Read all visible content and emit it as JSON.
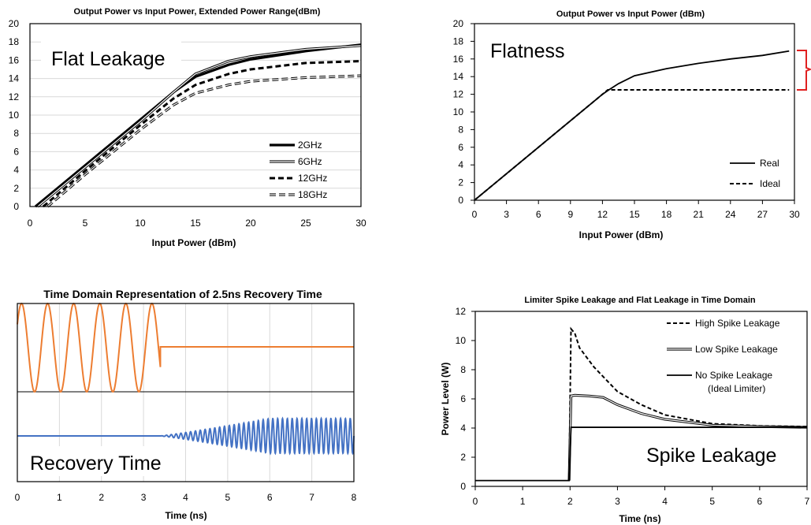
{
  "chart_data": [
    {
      "id": "c1",
      "type": "line",
      "title": "Output Power vs Input Power, Extended Power Range(dBm)",
      "xlabel": "Input Power (dBm)",
      "ylabel": "",
      "xlim": [
        0,
        30
      ],
      "ylim": [
        0,
        20
      ],
      "xticks": [
        0,
        5,
        10,
        15,
        20,
        25,
        30
      ],
      "yticks": [
        0,
        2,
        4,
        6,
        8,
        10,
        12,
        14,
        16,
        18,
        20
      ],
      "grid": "horizontal",
      "legend": "bottom-right",
      "annotation": "Flat Leakage",
      "series": [
        {
          "name": "2GHz",
          "style": "thick-solid",
          "points": [
            [
              0.5,
              0
            ],
            [
              5,
              4.5
            ],
            [
              10,
              9.5
            ],
            [
              13,
              12.5
            ],
            [
              15,
              14.2
            ],
            [
              18,
              15.5
            ],
            [
              20,
              16.1
            ],
            [
              25,
              17
            ],
            [
              30,
              17.7
            ]
          ]
        },
        {
          "name": "6GHz",
          "style": "double",
          "points": [
            [
              0.7,
              0
            ],
            [
              5,
              4.3
            ],
            [
              10,
              9.3
            ],
            [
              13,
              12.5
            ],
            [
              15,
              14.5
            ],
            [
              18,
              15.9
            ],
            [
              20,
              16.4
            ],
            [
              25,
              17.2
            ],
            [
              30,
              17.6
            ]
          ]
        },
        {
          "name": "12GHz",
          "style": "thick-dashed",
          "points": [
            [
              1.2,
              0
            ],
            [
              5,
              3.9
            ],
            [
              10,
              8.9
            ],
            [
              13,
              11.8
            ],
            [
              15,
              13.3
            ],
            [
              18,
              14.5
            ],
            [
              20,
              15
            ],
            [
              25,
              15.7
            ],
            [
              30,
              15.9
            ]
          ]
        },
        {
          "name": "18GHz",
          "style": "double-dashed",
          "points": [
            [
              1.6,
              0
            ],
            [
              5,
              3.5
            ],
            [
              10,
              8.4
            ],
            [
              13,
              11.1
            ],
            [
              15,
              12.4
            ],
            [
              18,
              13.3
            ],
            [
              20,
              13.7
            ],
            [
              25,
              14.1
            ],
            [
              30,
              14.3
            ]
          ]
        }
      ]
    },
    {
      "id": "c2",
      "type": "line",
      "title": "Output Power vs Input Power (dBm)",
      "xlabel": "Input Power (dBm)",
      "ylabel": "",
      "xlim": [
        0,
        30
      ],
      "ylim": [
        0,
        20
      ],
      "xticks": [
        0,
        3,
        6,
        9,
        12,
        15,
        18,
        21,
        24,
        27,
        30
      ],
      "yticks": [
        0,
        2,
        4,
        6,
        8,
        10,
        12,
        14,
        16,
        18,
        20
      ],
      "grid": "none",
      "legend": "bottom-right",
      "annotation": "Flatness",
      "series": [
        {
          "name": "Real",
          "style": "solid",
          "points": [
            [
              0,
              0
            ],
            [
              12,
              12
            ],
            [
              12.6,
              12.5
            ],
            [
              13.5,
              13.2
            ],
            [
              15,
              14.1
            ],
            [
              18,
              14.9
            ],
            [
              21,
              15.5
            ],
            [
              24,
              16
            ],
            [
              27,
              16.4
            ],
            [
              29.5,
              16.9
            ]
          ]
        },
        {
          "name": "Ideal",
          "style": "dashed",
          "points": [
            [
              0,
              0
            ],
            [
              12.5,
              12.5
            ],
            [
              29.5,
              12.5
            ]
          ]
        }
      ]
    },
    {
      "id": "c3",
      "type": "line",
      "title": "Time Domain Representation of 2.5ns Recovery Time",
      "xlabel": "Time (ns)",
      "ylabel": "",
      "xlim": [
        0,
        8
      ],
      "xticks": [
        0,
        1,
        2,
        3,
        4,
        5,
        6,
        7,
        8
      ],
      "grid": "vertical",
      "annotation": "Recovery Time",
      "series": [
        {
          "name": "",
          "color": "#ED7D31",
          "style": "burst",
          "note": "sinusoid until 3.4 ns, then flat"
        },
        {
          "name": "",
          "color": "#4472C4",
          "style": "recovery",
          "note": "flat until 3.4 ns, oscillation grows to full amplitude by 6 ns"
        }
      ]
    },
    {
      "id": "c4",
      "type": "line",
      "title": "Limiter Spike Leakage and Flat Leakage in Time Domain",
      "xlabel": "Time (ns)",
      "ylabel": "Power Level (W)",
      "xlim": [
        0,
        7
      ],
      "ylim": [
        0,
        12
      ],
      "xticks": [
        0,
        1,
        2,
        3,
        4,
        5,
        6,
        7
      ],
      "yticks": [
        0,
        2,
        4,
        6,
        8,
        10,
        12
      ],
      "grid": "none",
      "legend": "top-right",
      "annotation": "Spike Leakage",
      "series": [
        {
          "name": "High Spike Leakage",
          "style": "dashed",
          "points": [
            [
              1.98,
              0.4
            ],
            [
              2.02,
              10.8
            ],
            [
              2.1,
              10.5
            ],
            [
              2.2,
              9.5
            ],
            [
              2.5,
              8.2
            ],
            [
              3,
              6.5
            ],
            [
              3.5,
              5.6
            ],
            [
              4,
              4.9
            ],
            [
              5,
              4.3
            ],
            [
              6,
              4.15
            ],
            [
              7,
              4.1
            ]
          ]
        },
        {
          "name": "Low Spike Leakage",
          "style": "double",
          "points": [
            [
              1.98,
              0.4
            ],
            [
              2.02,
              6.2
            ],
            [
              2.1,
              6.25
            ],
            [
              2.4,
              6.2
            ],
            [
              2.7,
              6.1
            ],
            [
              3,
              5.6
            ],
            [
              3.5,
              5.0
            ],
            [
              4,
              4.6
            ],
            [
              5,
              4.2
            ],
            [
              6,
              4.1
            ],
            [
              7,
              4.05
            ]
          ]
        },
        {
          "name": "No Spike Leakage",
          "name2": "(Ideal Limiter)",
          "style": "solid",
          "points": [
            [
              0,
              0.4
            ],
            [
              1.98,
              0.4
            ],
            [
              2.02,
              4.05
            ],
            [
              7,
              4.05
            ]
          ]
        }
      ]
    }
  ]
}
